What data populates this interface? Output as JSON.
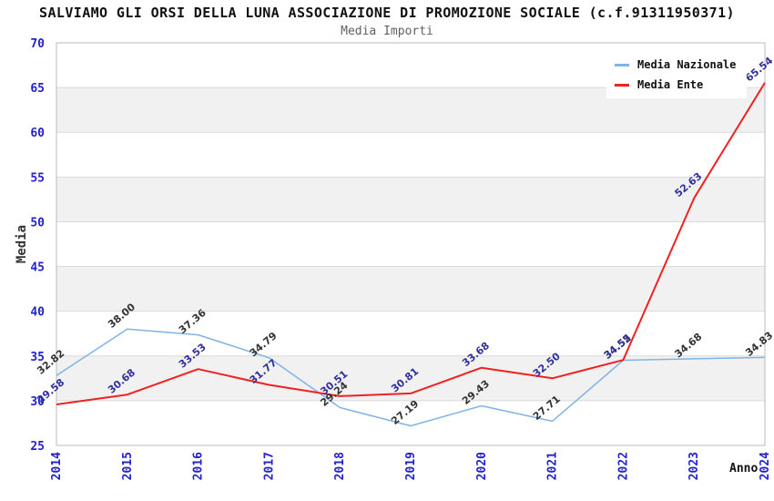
{
  "chart_data": {
    "type": "line",
    "title": "SALVIAMO GLI ORSI DELLA LUNA ASSOCIAZIONE DI PROMOZIONE SOCIALE (c.f.91311950371)",
    "subtitle": "Media Importi",
    "xlabel": "Anno",
    "ylabel": "Media",
    "ylim": [
      25,
      70
    ],
    "yticks": [
      70,
      65,
      60,
      55,
      50,
      45,
      40,
      35,
      30,
      25
    ],
    "categories": [
      "2014",
      "2015",
      "2016",
      "2017",
      "2018",
      "2019",
      "2020",
      "2021",
      "2022",
      "2023",
      "2024"
    ],
    "series": [
      {
        "name": "Media Nazionale",
        "color": "#80b3e6",
        "label_color": "#333333",
        "stroke_width": 1.5,
        "values": [
          32.82,
          38.0,
          37.36,
          34.79,
          29.24,
          27.19,
          29.43,
          27.71,
          34.52,
          34.68,
          34.83
        ]
      },
      {
        "name": "Media Ente",
        "color": "#ee2222",
        "label_color": "#30309c",
        "stroke_width": 2,
        "values": [
          29.58,
          30.68,
          33.53,
          31.77,
          30.51,
          30.81,
          33.68,
          32.5,
          34.55,
          52.63,
          65.54
        ]
      }
    ],
    "legend_position": "top-right",
    "grid": "horizontal-bands",
    "style": {
      "tick_label_color": "#2222cc",
      "band_fill": "#f1f1f1",
      "gridline_color": "#dadada",
      "border_color": "#bbbbbb",
      "axis_title_color": "#333333",
      "title_color": "#111111",
      "subtitle_color": "#606060"
    }
  }
}
